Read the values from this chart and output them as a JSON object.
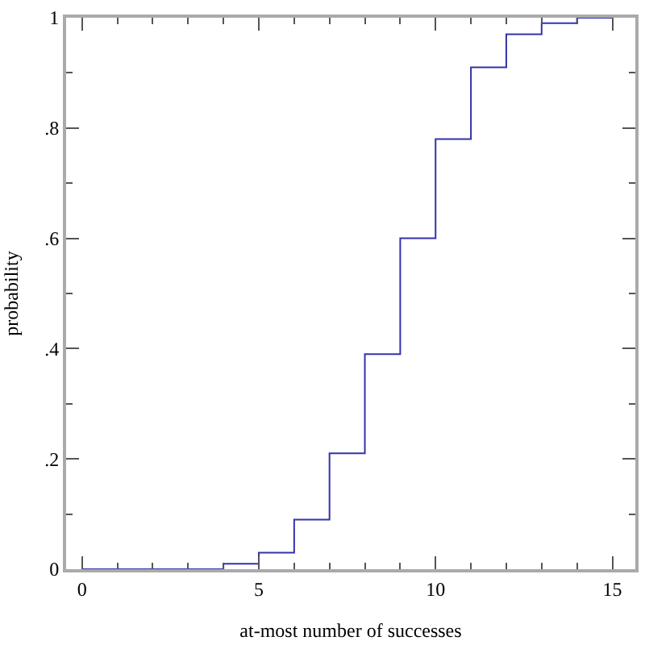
{
  "chart_data": {
    "type": "step",
    "xlabel": "at-most number of successes",
    "ylabel": "probability",
    "x": [
      0,
      1,
      2,
      3,
      4,
      5,
      6,
      7,
      8,
      9,
      10,
      11,
      12,
      13,
      14,
      15
    ],
    "series": [
      {
        "color": "#3333aa",
        "values": [
          0,
          0,
          0,
          0,
          0.01,
          0.03,
          0.09,
          0.21,
          0.39,
          0.6,
          0.78,
          0.91,
          0.97,
          0.99,
          1,
          1
        ]
      }
    ],
    "xlim": [
      -0.45,
      15.65
    ],
    "ylim": [
      0,
      1
    ],
    "xticks": [
      0,
      {
        "value": 1,
        "label": null
      },
      {
        "value": 2,
        "label": null
      },
      {
        "value": 3,
        "label": null
      },
      {
        "value": 4,
        "label": null
      },
      5,
      {
        "value": 6,
        "label": null
      },
      {
        "value": 7,
        "label": null
      },
      {
        "value": 8,
        "label": null
      },
      {
        "value": 9,
        "label": null
      },
      10,
      {
        "value": 11,
        "label": null
      },
      {
        "value": 12,
        "label": null
      },
      {
        "value": 13,
        "label": null
      },
      {
        "value": 14,
        "label": null
      },
      15
    ],
    "yticks": [
      0,
      {
        "value": 0.1,
        "label": null
      },
      {
        "value": 0.2,
        "label": ".2"
      },
      {
        "value": 0.3,
        "label": null
      },
      {
        "value": 0.4,
        "label": ".4"
      },
      {
        "value": 0.5,
        "label": null
      },
      {
        "value": 0.6,
        "label": ".6"
      },
      {
        "value": 0.7,
        "label": null
      },
      {
        "value": 0.8,
        "label": ".8"
      },
      {
        "value": 0.9,
        "label": null
      },
      1
    ],
    "marker": "none",
    "line_style": "solid"
  }
}
